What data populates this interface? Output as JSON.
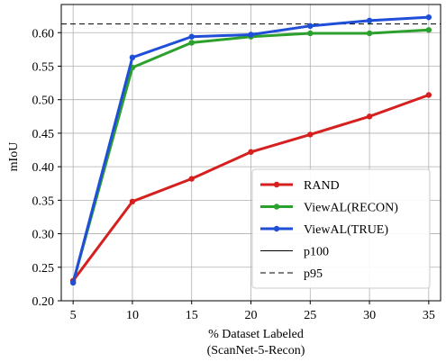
{
  "chart_data": {
    "type": "line",
    "title": "",
    "xlabel": "% Dataset Labeled",
    "xlabel_line2": "(ScanNet-5-Recon)",
    "ylabel": "mIoU",
    "x": [
      5,
      10,
      15,
      20,
      25,
      30,
      35
    ],
    "xlim": [
      4,
      36
    ],
    "ylim": [
      0.2,
      0.642
    ],
    "xticks": [
      "5",
      "10",
      "15",
      "20",
      "25",
      "30",
      "35"
    ],
    "yticks": [
      "0.20",
      "0.25",
      "0.30",
      "0.35",
      "0.40",
      "0.45",
      "0.50",
      "0.55",
      "0.60"
    ],
    "grid": true,
    "legend_position": "lower-right",
    "series": [
      {
        "name": "RAND",
        "color": "#d62020",
        "marker": "circle",
        "style": "solid",
        "values": [
          0.23,
          0.348,
          0.382,
          0.422,
          0.448,
          0.475,
          0.507
        ]
      },
      {
        "name": "ViewAL(RECON)",
        "color": "#2ca02c",
        "marker": "circle",
        "style": "solid",
        "values": [
          0.227,
          0.548,
          0.585,
          0.594,
          0.599,
          0.599,
          0.604
        ]
      },
      {
        "name": "ViewAL(TRUE)",
        "color": "#1f4fd6",
        "marker": "circle",
        "style": "solid",
        "values": [
          0.227,
          0.563,
          0.594,
          0.597,
          0.61,
          0.618,
          0.623
        ]
      }
    ],
    "reference_lines": [
      {
        "name": "p100",
        "style": "solid",
        "color": "#000000",
        "value": 0.645
      },
      {
        "name": "p95",
        "style": "dashed",
        "color": "#000000",
        "value": 0.613
      }
    ]
  }
}
